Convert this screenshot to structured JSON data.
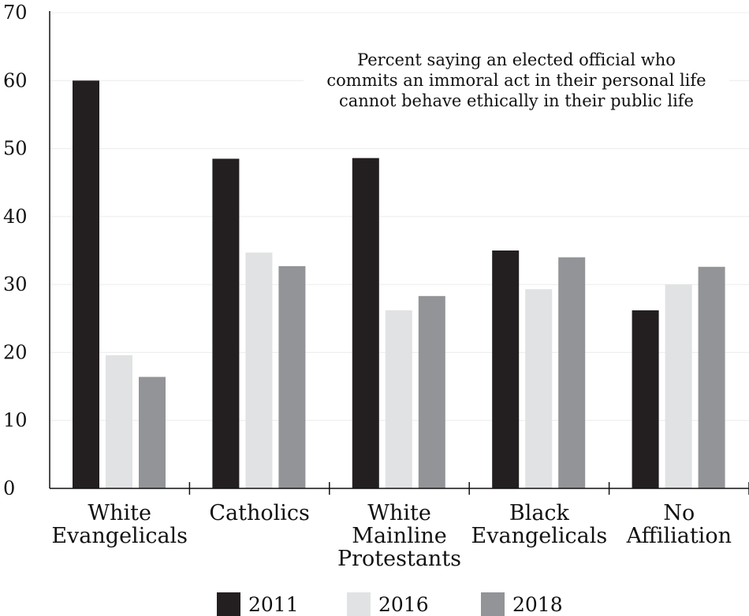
{
  "chart_data": {
    "type": "bar",
    "title_lines": [
      "Percent saying an elected official who",
      "commits an immoral act in their personal life",
      "cannot behave ethically in their public life"
    ],
    "categories": [
      [
        "White",
        "Evangelicals"
      ],
      [
        "Catholics"
      ],
      [
        "White",
        "Mainline",
        "Protestants"
      ],
      [
        "Black",
        "Evangelicals"
      ],
      [
        "No",
        "Affiliation"
      ]
    ],
    "series": [
      {
        "name": "2011",
        "color": "#231f20",
        "values": [
          60,
          48.5,
          48.6,
          35,
          26.2
        ]
      },
      {
        "name": "2016",
        "color": "#e1e2e3",
        "values": [
          19.6,
          34.7,
          26.2,
          29.3,
          30
        ]
      },
      {
        "name": "2018",
        "color": "#929497",
        "values": [
          16.4,
          32.7,
          28.3,
          34,
          32.6
        ]
      }
    ],
    "ylim": [
      0,
      70
    ],
    "yticks": [
      0,
      10,
      20,
      30,
      40,
      50,
      60,
      70
    ],
    "ytick_labels": [
      "0",
      "10",
      "20",
      "30",
      "40",
      "50",
      "60",
      "70"
    ],
    "xlabel": "",
    "ylabel": "",
    "grid": true,
    "legend_position": "bottom-center"
  }
}
